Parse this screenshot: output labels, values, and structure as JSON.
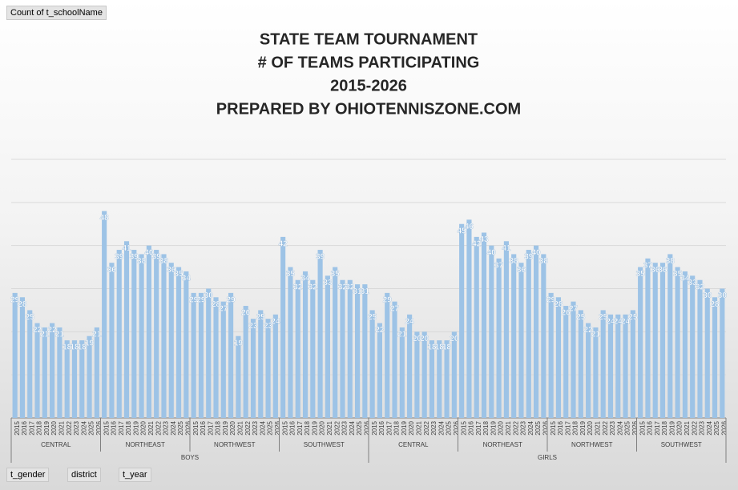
{
  "field_buttons": {
    "value_field": "Count of t_schoolName",
    "filters": [
      "t_gender",
      "district",
      "t_year"
    ]
  },
  "chart_data": {
    "type": "bar",
    "title_lines": [
      "STATE TEAM TOURNAMENT",
      "# OF TEAMS PARTICIPATING",
      "2015-2026",
      "PREPARED BY OHIOTENNISZONE.COM"
    ],
    "categories": [
      "2015",
      "2016",
      "2017",
      "2018",
      "2019",
      "2020",
      "2021",
      "2022",
      "2023",
      "2024",
      "2025",
      "2026"
    ],
    "color": "#9dc3e6",
    "ylim": [
      0,
      60
    ],
    "yticks": [
      10,
      20,
      30,
      40,
      50,
      60
    ],
    "grid": true,
    "groups": [
      {
        "name": "BOYS",
        "districts": [
          {
            "name": "CENTRAL",
            "values": [
              29,
              28,
              25,
              22,
              21,
              22,
              21,
              18,
              18,
              18,
              19,
              21
            ]
          },
          {
            "name": "NORTHEAST",
            "values": [
              48,
              36,
              39,
              41,
              39,
              38,
              40,
              39,
              38,
              36,
              35,
              34
            ]
          },
          {
            "name": "NORTHWEST",
            "values": [
              29,
              29,
              30,
              28,
              27,
              29,
              19,
              26,
              23,
              25,
              23,
              24
            ]
          },
          {
            "name": "SOUTHWEST",
            "values": [
              42,
              35,
              32,
              34,
              32,
              39,
              33,
              35,
              32,
              32,
              31,
              31
            ]
          }
        ]
      },
      {
        "name": "GIRLS",
        "districts": [
          {
            "name": "CENTRAL",
            "values": [
              25,
              22,
              29,
              27,
              21,
              24,
              20,
              20,
              18,
              18,
              18,
              20
            ]
          },
          {
            "name": "NORTHEAST",
            "values": [
              45,
              46,
              42,
              43,
              40,
              37,
              41,
              38,
              36,
              39,
              40,
              38
            ]
          },
          {
            "name": "NORTHWEST",
            "values": [
              29,
              28,
              26,
              27,
              25,
              22,
              21,
              25,
              24,
              24,
              24,
              25
            ]
          },
          {
            "name": "SOUTHWEST",
            "values": [
              35,
              37,
              36,
              36,
              38,
              35,
              34,
              33,
              32,
              30,
              28,
              30
            ]
          }
        ]
      }
    ]
  }
}
